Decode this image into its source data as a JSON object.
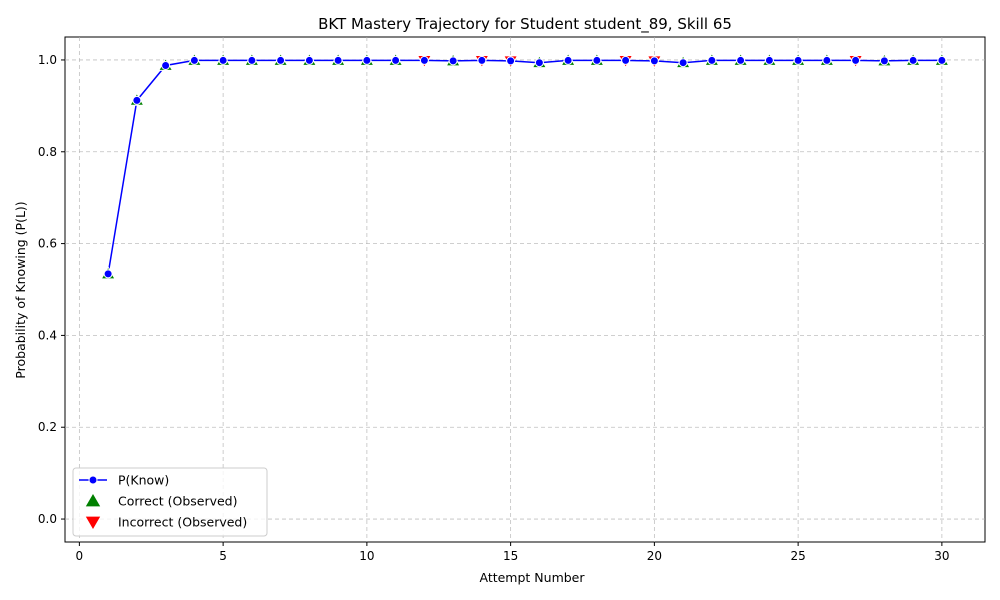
{
  "chart_data": {
    "type": "line",
    "title": "BKT Mastery Trajectory for Student student_89, Skill 65",
    "xlabel": "Attempt Number",
    "ylabel": "Probability of Knowing (P(L))",
    "xlim": [
      -0.5,
      31.5
    ],
    "ylim": [
      -0.05,
      1.05
    ],
    "xticks": [
      0,
      5,
      10,
      15,
      20,
      25,
      30
    ],
    "yticks": [
      0.0,
      0.2,
      0.4,
      0.6,
      0.8,
      1.0
    ],
    "xtick_labels": [
      "0",
      "5",
      "10",
      "15",
      "20",
      "25",
      "30"
    ],
    "ytick_labels": [
      "0.0",
      "0.2",
      "0.4",
      "0.6",
      "0.8",
      "1.0"
    ],
    "grid": true,
    "legend_position": "lower-left",
    "x": [
      1,
      2,
      3,
      4,
      5,
      6,
      7,
      8,
      9,
      10,
      11,
      12,
      13,
      14,
      15,
      16,
      17,
      18,
      19,
      20,
      21,
      22,
      23,
      24,
      25,
      26,
      27,
      28,
      29,
      30
    ],
    "series": [
      {
        "name": "P(Know)",
        "color": "#0000ff",
        "marker_fill": "#0000ff",
        "values": [
          0.534,
          0.912,
          0.988,
          0.999,
          0.999,
          0.999,
          0.999,
          0.999,
          0.999,
          0.999,
          0.999,
          0.999,
          0.998,
          0.999,
          0.998,
          0.994,
          0.999,
          0.999,
          0.999,
          0.998,
          0.994,
          0.999,
          0.999,
          0.999,
          0.999,
          0.999,
          0.999,
          0.998,
          0.999,
          0.999
        ]
      }
    ],
    "observations": [
      {
        "name": "Correct (Observed)",
        "color": "#008000",
        "marker": "triangle-up",
        "x": [
          1,
          2,
          3,
          4,
          5,
          6,
          7,
          8,
          9,
          10,
          11,
          13,
          16,
          17,
          18,
          21,
          22,
          23,
          24,
          25,
          26,
          28,
          29,
          30
        ]
      },
      {
        "name": "Incorrect (Observed)",
        "color": "#ff0000",
        "marker": "triangle-down",
        "x": [
          12,
          14,
          15,
          19,
          20,
          27
        ]
      }
    ]
  }
}
